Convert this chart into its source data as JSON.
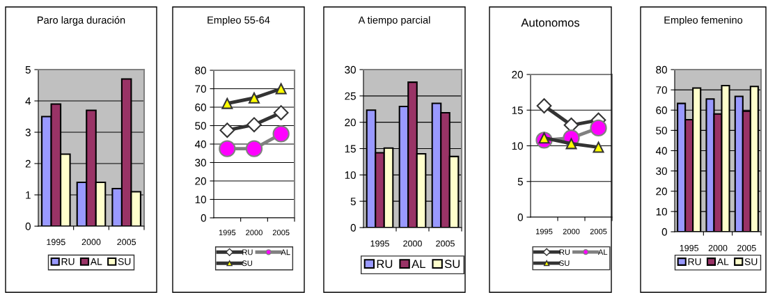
{
  "chart_data": [
    {
      "type": "bar",
      "title": "Paro larga duración",
      "categories": [
        "1995",
        "2000",
        "2005"
      ],
      "ylim": [
        0,
        5
      ],
      "yticks": [
        0,
        1,
        2,
        3,
        4,
        5
      ],
      "grid": "y",
      "legend": "bottom",
      "series": [
        {
          "name": "RU",
          "color": "#9999ff",
          "values": [
            3.5,
            1.4,
            1.2
          ]
        },
        {
          "name": "AL",
          "color": "#993366",
          "values": [
            3.9,
            3.7,
            4.7
          ]
        },
        {
          "name": "SU",
          "color": "#ffffcc",
          "values": [
            2.3,
            1.4,
            1.1
          ]
        }
      ]
    },
    {
      "type": "line",
      "title": "Empleo 55-64",
      "categories": [
        "1995",
        "2000",
        "2005"
      ],
      "ylim": [
        0,
        80
      ],
      "yticks": [
        0,
        10,
        20,
        30,
        40,
        50,
        60,
        70,
        80
      ],
      "grid": "y",
      "legend": "bottom",
      "series": [
        {
          "name": "RU",
          "color": "#ffffff",
          "marker": "diamond",
          "values": [
            47.5,
            50.5,
            57
          ]
        },
        {
          "name": "AL",
          "color": "#ff00ff",
          "marker": "circle",
          "values": [
            37.5,
            37.5,
            45.5
          ]
        },
        {
          "name": "SU",
          "color": "#ffff00",
          "marker": "triangle",
          "values": [
            62,
            65,
            70
          ]
        }
      ]
    },
    {
      "type": "bar",
      "title": "A tiempo parcial",
      "categories": [
        "1995",
        "2000",
        "2005"
      ],
      "ylim": [
        0,
        30
      ],
      "yticks": [
        0,
        5,
        10,
        15,
        20,
        25,
        30
      ],
      "grid": "y",
      "legend": "bottom",
      "series": [
        {
          "name": "RU",
          "color": "#9999ff",
          "values": [
            22.3,
            23,
            23.6
          ]
        },
        {
          "name": "AL",
          "color": "#993366",
          "values": [
            14.2,
            27.6,
            21.8
          ]
        },
        {
          "name": "SU",
          "color": "#ffffcc",
          "values": [
            15.1,
            14,
            13.5
          ]
        }
      ]
    },
    {
      "type": "line",
      "title": "Autonomos",
      "categories": [
        "1995",
        "2000",
        "2005"
      ],
      "ylim": [
        0,
        20
      ],
      "yticks": [
        0,
        5,
        10,
        15,
        20
      ],
      "grid": "y",
      "legend": "bottom",
      "series": [
        {
          "name": "RU",
          "color": "#ffffff",
          "marker": "diamond",
          "values": [
            15.6,
            12.9,
            13.6
          ]
        },
        {
          "name": "AL",
          "color": "#ff00ff",
          "marker": "circle",
          "values": [
            10.8,
            11.1,
            12.5
          ]
        },
        {
          "name": "SU",
          "color": "#ffff00",
          "marker": "triangle",
          "values": [
            11.1,
            10.3,
            9.8
          ]
        }
      ]
    },
    {
      "type": "bar",
      "title": "Empleo femenino",
      "categories": [
        "1995",
        "2000",
        "2005"
      ],
      "ylim": [
        0,
        80
      ],
      "yticks": [
        0,
        10,
        20,
        30,
        40,
        50,
        60,
        70,
        80
      ],
      "grid": "y",
      "legend": "bottom",
      "series": [
        {
          "name": "RU",
          "color": "#9999ff",
          "values": [
            63.3,
            65.5,
            66.8
          ]
        },
        {
          "name": "AL",
          "color": "#993366",
          "values": [
            55.3,
            58.1,
            59.5
          ]
        },
        {
          "name": "SU",
          "color": "#ffffcc",
          "values": [
            70.9,
            72.1,
            71.7
          ]
        }
      ]
    }
  ]
}
